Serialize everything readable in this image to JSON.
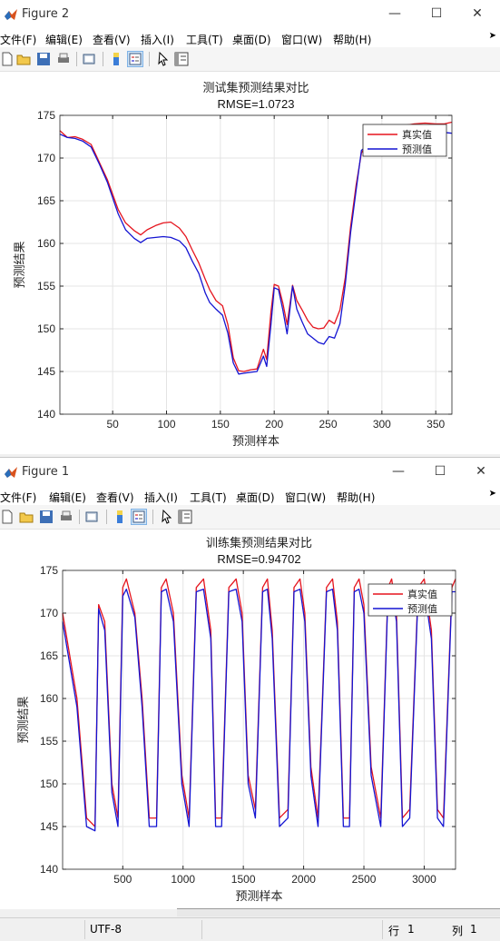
{
  "figure2": {
    "window_title": "Figure 2",
    "chart_data": {
      "type": "line",
      "title": "测试集预测结果对比",
      "subtitle": "RMSE=1.0723",
      "xlabel": "预测样本",
      "ylabel": "预测结果",
      "xlim": [
        1,
        365
      ],
      "ylim": [
        140,
        175
      ],
      "xticks": [
        50,
        100,
        150,
        200,
        250,
        300,
        350
      ],
      "yticks": [
        140,
        145,
        150,
        155,
        160,
        165,
        170,
        175
      ],
      "grid": true,
      "legend_position": "top-right",
      "series": [
        {
          "name": "真实值",
          "color": "#e5141d",
          "x": [
            1,
            8,
            15,
            22,
            30,
            38,
            45,
            55,
            62,
            70,
            76,
            82,
            90,
            97,
            104,
            112,
            118,
            124,
            130,
            136,
            140,
            146,
            152,
            157,
            162,
            167,
            172,
            178,
            184,
            190,
            193,
            197,
            200,
            204,
            208,
            212,
            217,
            221,
            226,
            231,
            236,
            241,
            246,
            251,
            256,
            261,
            266,
            271,
            276,
            281,
            286,
            292,
            300,
            310,
            320,
            330,
            340,
            350,
            358,
            365
          ],
          "y": [
            173.2,
            172.4,
            172.5,
            172.2,
            171.6,
            169.4,
            167.5,
            164.0,
            162.4,
            161.5,
            161.0,
            161.6,
            162.1,
            162.4,
            162.5,
            161.8,
            160.8,
            159.2,
            157.7,
            155.8,
            154.6,
            153.3,
            152.7,
            150.5,
            146.6,
            145.1,
            145.0,
            145.2,
            145.3,
            147.6,
            146.4,
            152.0,
            155.2,
            155.0,
            153.0,
            150.5,
            155.1,
            153.3,
            152.2,
            151.0,
            150.2,
            150.0,
            150.1,
            151.0,
            150.6,
            152.2,
            156.0,
            162.0,
            166.8,
            170.6,
            171.5,
            171.4,
            172.2,
            172.3,
            173.8,
            174.0,
            174.1,
            174.0,
            174.0,
            174.2
          ]
        },
        {
          "name": "预测值",
          "color": "#1414d2",
          "x": [
            1,
            8,
            15,
            22,
            30,
            38,
            45,
            55,
            62,
            70,
            76,
            82,
            90,
            97,
            104,
            112,
            118,
            124,
            130,
            136,
            140,
            146,
            152,
            157,
            162,
            167,
            172,
            178,
            184,
            190,
            193,
            197,
            200,
            204,
            208,
            212,
            217,
            221,
            226,
            231,
            236,
            241,
            246,
            251,
            256,
            261,
            266,
            271,
            276,
            281,
            286,
            292,
            300,
            310,
            320,
            330,
            340,
            350,
            358,
            365
          ],
          "y": [
            172.8,
            172.4,
            172.3,
            172.0,
            171.3,
            169.2,
            167.2,
            163.5,
            161.6,
            160.6,
            160.1,
            160.6,
            160.7,
            160.8,
            160.7,
            160.3,
            159.5,
            157.9,
            156.5,
            154.2,
            153.1,
            152.3,
            151.6,
            149.5,
            146.0,
            144.7,
            144.8,
            144.9,
            145.0,
            146.8,
            145.6,
            150.5,
            154.8,
            154.6,
            152.2,
            149.4,
            155.0,
            152.3,
            150.8,
            149.4,
            148.9,
            148.4,
            148.2,
            149.1,
            148.9,
            150.6,
            155.2,
            161.3,
            166.2,
            170.9,
            171.4,
            171.2,
            171.9,
            172.0,
            172.9,
            173.0,
            173.1,
            173.2,
            173.0,
            172.9
          ]
        }
      ]
    }
  },
  "figure1": {
    "window_title": "Figure 1",
    "chart_data": {
      "type": "line",
      "title": "训练集预测结果对比",
      "subtitle": "RMSE=0.94702",
      "xlabel": "预测样本",
      "ylabel": "预测结果",
      "xlim": [
        1,
        3260
      ],
      "ylim": [
        140,
        175
      ],
      "xticks": [
        500,
        1000,
        1500,
        2000,
        2500,
        3000
      ],
      "yticks": [
        140,
        145,
        150,
        155,
        160,
        165,
        170,
        175
      ],
      "grid": true,
      "legend_position": "top-right",
      "series": [
        {
          "name": "真实值",
          "color": "#e5141d",
          "x": [
            1,
            120,
            200,
            270,
            300,
            350,
            410,
            460,
            500,
            530,
            600,
            660,
            720,
            780,
            820,
            860,
            920,
            990,
            1050,
            1110,
            1170,
            1230,
            1270,
            1320,
            1380,
            1440,
            1490,
            1540,
            1600,
            1660,
            1700,
            1740,
            1800,
            1870,
            1920,
            1970,
            2010,
            2060,
            2120,
            2190,
            2240,
            2280,
            2330,
            2380,
            2420,
            2460,
            2500,
            2560,
            2640,
            2700,
            2730,
            2770,
            2820,
            2880,
            2950,
            3000,
            3060,
            3110,
            3160,
            3230,
            3260
          ],
          "y": [
            170,
            160,
            146,
            145,
            171,
            169,
            150,
            146,
            173,
            174,
            170,
            160,
            146,
            146,
            173,
            174,
            170,
            151,
            146,
            173,
            174,
            168,
            146,
            146,
            173,
            174,
            170,
            151,
            147,
            173,
            174,
            168,
            146,
            147,
            173,
            174,
            170,
            152,
            146,
            173,
            174,
            169,
            146,
            146,
            173,
            174,
            171,
            152,
            146,
            173,
            174,
            170,
            146,
            147,
            173,
            174,
            168,
            147,
            146,
            173,
            174
          ]
        },
        {
          "name": "预测值",
          "color": "#1414d2",
          "x": [
            1,
            120,
            200,
            270,
            300,
            350,
            410,
            460,
            500,
            530,
            600,
            660,
            720,
            780,
            820,
            860,
            920,
            990,
            1050,
            1110,
            1170,
            1230,
            1270,
            1320,
            1380,
            1440,
            1490,
            1540,
            1600,
            1660,
            1700,
            1740,
            1800,
            1870,
            1920,
            1970,
            2010,
            2060,
            2120,
            2190,
            2240,
            2280,
            2330,
            2380,
            2420,
            2460,
            2500,
            2560,
            2640,
            2700,
            2730,
            2770,
            2820,
            2880,
            2950,
            3000,
            3060,
            3110,
            3160,
            3230,
            3260
          ],
          "y": [
            169,
            159,
            145,
            144.5,
            170.5,
            168,
            149,
            145,
            172,
            172.8,
            169.5,
            159,
            145,
            145,
            172.5,
            172.8,
            169,
            150,
            145,
            172.5,
            172.8,
            167,
            145,
            145,
            172.5,
            172.8,
            169,
            150,
            146,
            172.5,
            172.8,
            167,
            145,
            146,
            172.5,
            172.8,
            169,
            151,
            145,
            172.5,
            172.8,
            168,
            145,
            145,
            172.5,
            172.8,
            170,
            151,
            145,
            172.5,
            172.8,
            169,
            145,
            146,
            172.5,
            172.8,
            167,
            146,
            145,
            172.5,
            172.5
          ]
        }
      ]
    }
  },
  "menu": {
    "file": "文件(F)",
    "edit": "编辑(E)",
    "view": "查看(V)",
    "insert": "插入(I)",
    "tools": "工具(T)",
    "desktop": "桌面(D)",
    "window": "窗口(W)",
    "help": "帮助(H)"
  },
  "statusbar": {
    "encoding": "UTF-8",
    "row_label": "行",
    "row_value": "1",
    "col_label": "列",
    "col_value": "1"
  },
  "colors": {
    "titlebar": "#ffffff",
    "figure_bg": "#f0f0f0",
    "axes_bg": "#ffffff",
    "grid": "#e6e6e6"
  }
}
